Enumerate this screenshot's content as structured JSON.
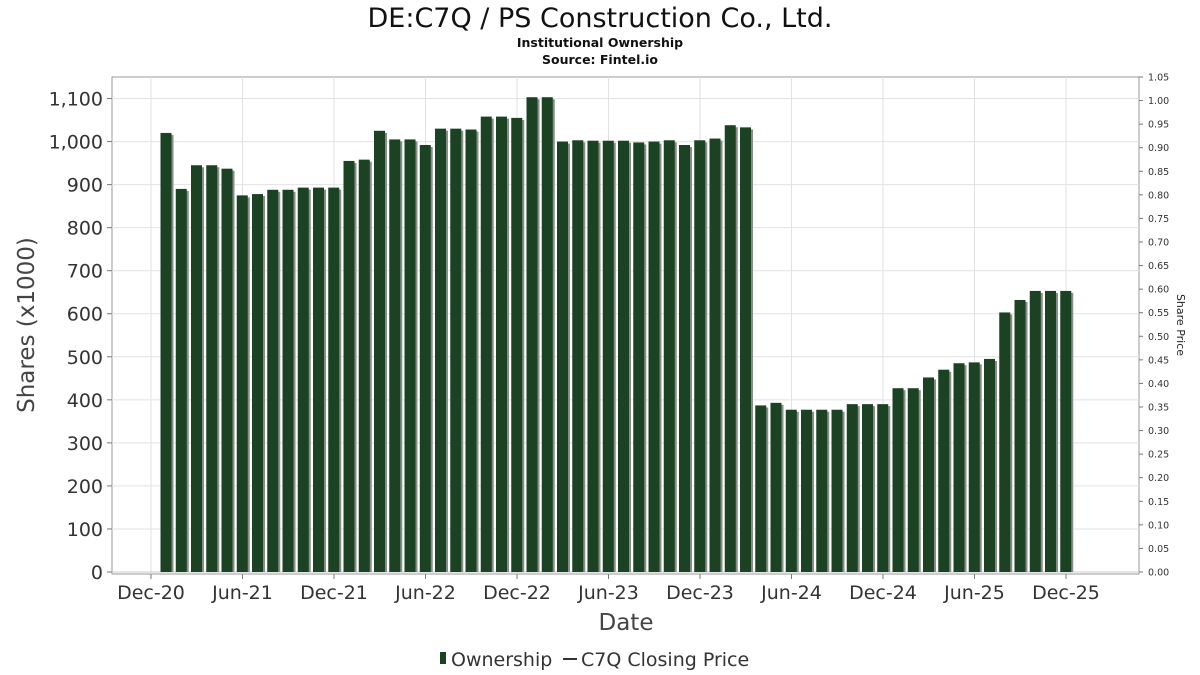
{
  "chart_data": {
    "type": "bar",
    "title": "DE:C7Q / PS Construction Co., Ltd.",
    "subtitle": "Institutional Ownership",
    "source": "Source: Fintel.io",
    "xlabel": "Date",
    "ylabel": "Shares (x1000)",
    "y2label": "Share Price",
    "ylim": [
      0,
      1150
    ],
    "y2lim": [
      0,
      1.05
    ],
    "yticks": [
      "0",
      "100",
      "200",
      "300",
      "400",
      "500",
      "600",
      "700",
      "800",
      "900",
      "1,000",
      "1,100"
    ],
    "y2ticks": [
      "0.00",
      "0.05",
      "0.10",
      "0.15",
      "0.20",
      "0.25",
      "0.30",
      "0.35",
      "0.40",
      "0.45",
      "0.50",
      "0.55",
      "0.60",
      "0.65",
      "0.70",
      "0.75",
      "0.80",
      "0.85",
      "0.90",
      "0.95",
      "1.00",
      "1.05"
    ],
    "xticks": [
      "Dec-20",
      "Jun-21",
      "Dec-21",
      "Jun-22",
      "Dec-22",
      "Jun-23",
      "Dec-23",
      "Jun-24",
      "Dec-24",
      "Jun-25",
      "Dec-25"
    ],
    "grid": true,
    "legend_position": "bottom",
    "series": [
      {
        "name": "Ownership",
        "color": "#1b4223",
        "values": [
          1020,
          890,
          945,
          945,
          937,
          875,
          878,
          888,
          888,
          893,
          893,
          893,
          955,
          958,
          1025,
          1005,
          1005,
          992,
          1030,
          1030,
          1028,
          1058,
          1058,
          1055,
          1103,
          1103,
          1000,
          1003,
          1002,
          1002,
          1002,
          998,
          1000,
          1003,
          992,
          1003,
          1007,
          1038,
          1033,
          387,
          393,
          377,
          377,
          377,
          377,
          390,
          390,
          390,
          427,
          427,
          452,
          470,
          485,
          487,
          495,
          603,
          632,
          653,
          653,
          653
        ]
      },
      {
        "name": "C7Q Closing Price",
        "color": "#333333",
        "values": []
      }
    ]
  }
}
